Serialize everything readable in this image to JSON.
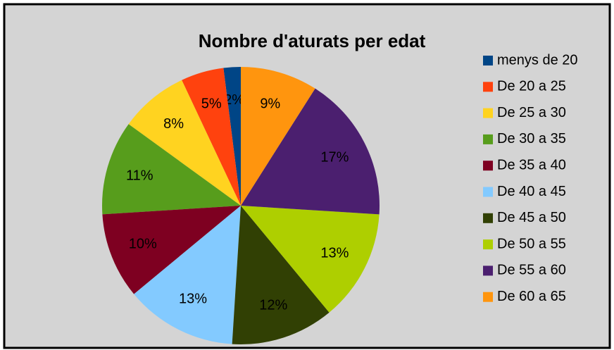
{
  "chart_data": {
    "type": "pie",
    "title": "Nombre d'aturats per edat",
    "categories": [
      "menys de 20",
      "De 20 a 25",
      "De 25 a 30",
      "De 30 a 35",
      "De 35 a 40",
      "De 40 a 45",
      "De 45 a 50",
      "De 50 a 55",
      "De 55 a 60",
      "De 60 a 65"
    ],
    "values": [
      2,
      5,
      8,
      11,
      10,
      13,
      12,
      13,
      17,
      9
    ],
    "value_labels": [
      "2%",
      "5%",
      "8%",
      "11%",
      "10%",
      "13%",
      "12%",
      "13%",
      "17%",
      "9%"
    ],
    "colors": [
      "#004586",
      "#ff420e",
      "#ffd320",
      "#579d1c",
      "#7e0021",
      "#83caff",
      "#314004",
      "#aecf00",
      "#4b1f6f",
      "#ff950e"
    ],
    "legend": "right"
  }
}
